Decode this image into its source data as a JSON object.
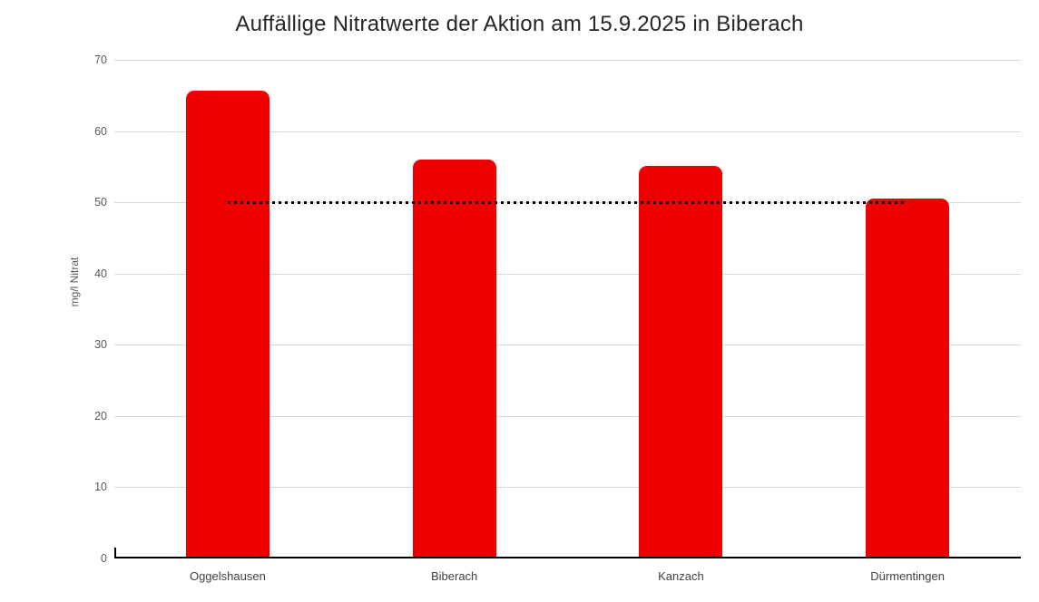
{
  "chart_data": {
    "type": "bar",
    "title": "Auffällige Nitratwerte der Aktion am 15.9.2025 in Biberach",
    "xlabel": "",
    "ylabel": "mg/l Nitrat",
    "categories": [
      "Oggelshausen",
      "Biberach",
      "Kanzach",
      "Dürmentingen"
    ],
    "values": [
      65.4,
      55.7,
      54.8,
      50.3
    ],
    "unit": "mg/l",
    "ylim": [
      0,
      70
    ],
    "yticks": [
      0,
      10,
      20,
      30,
      40,
      50,
      60,
      70
    ],
    "grid": true,
    "legend_position": "none",
    "limit_line": {
      "value": 50,
      "style": "dotted",
      "color": "#000000",
      "spans_from_category": "Oggelshausen",
      "spans_to_category": "Dürmentingen"
    },
    "colors": {
      "bar": "#EE0000",
      "gridline": "#D9D9D9",
      "axis": "#000000",
      "tick_label": "#595959",
      "category_label": "#404040",
      "title": "#262626",
      "background": "#FFFFFF"
    }
  }
}
